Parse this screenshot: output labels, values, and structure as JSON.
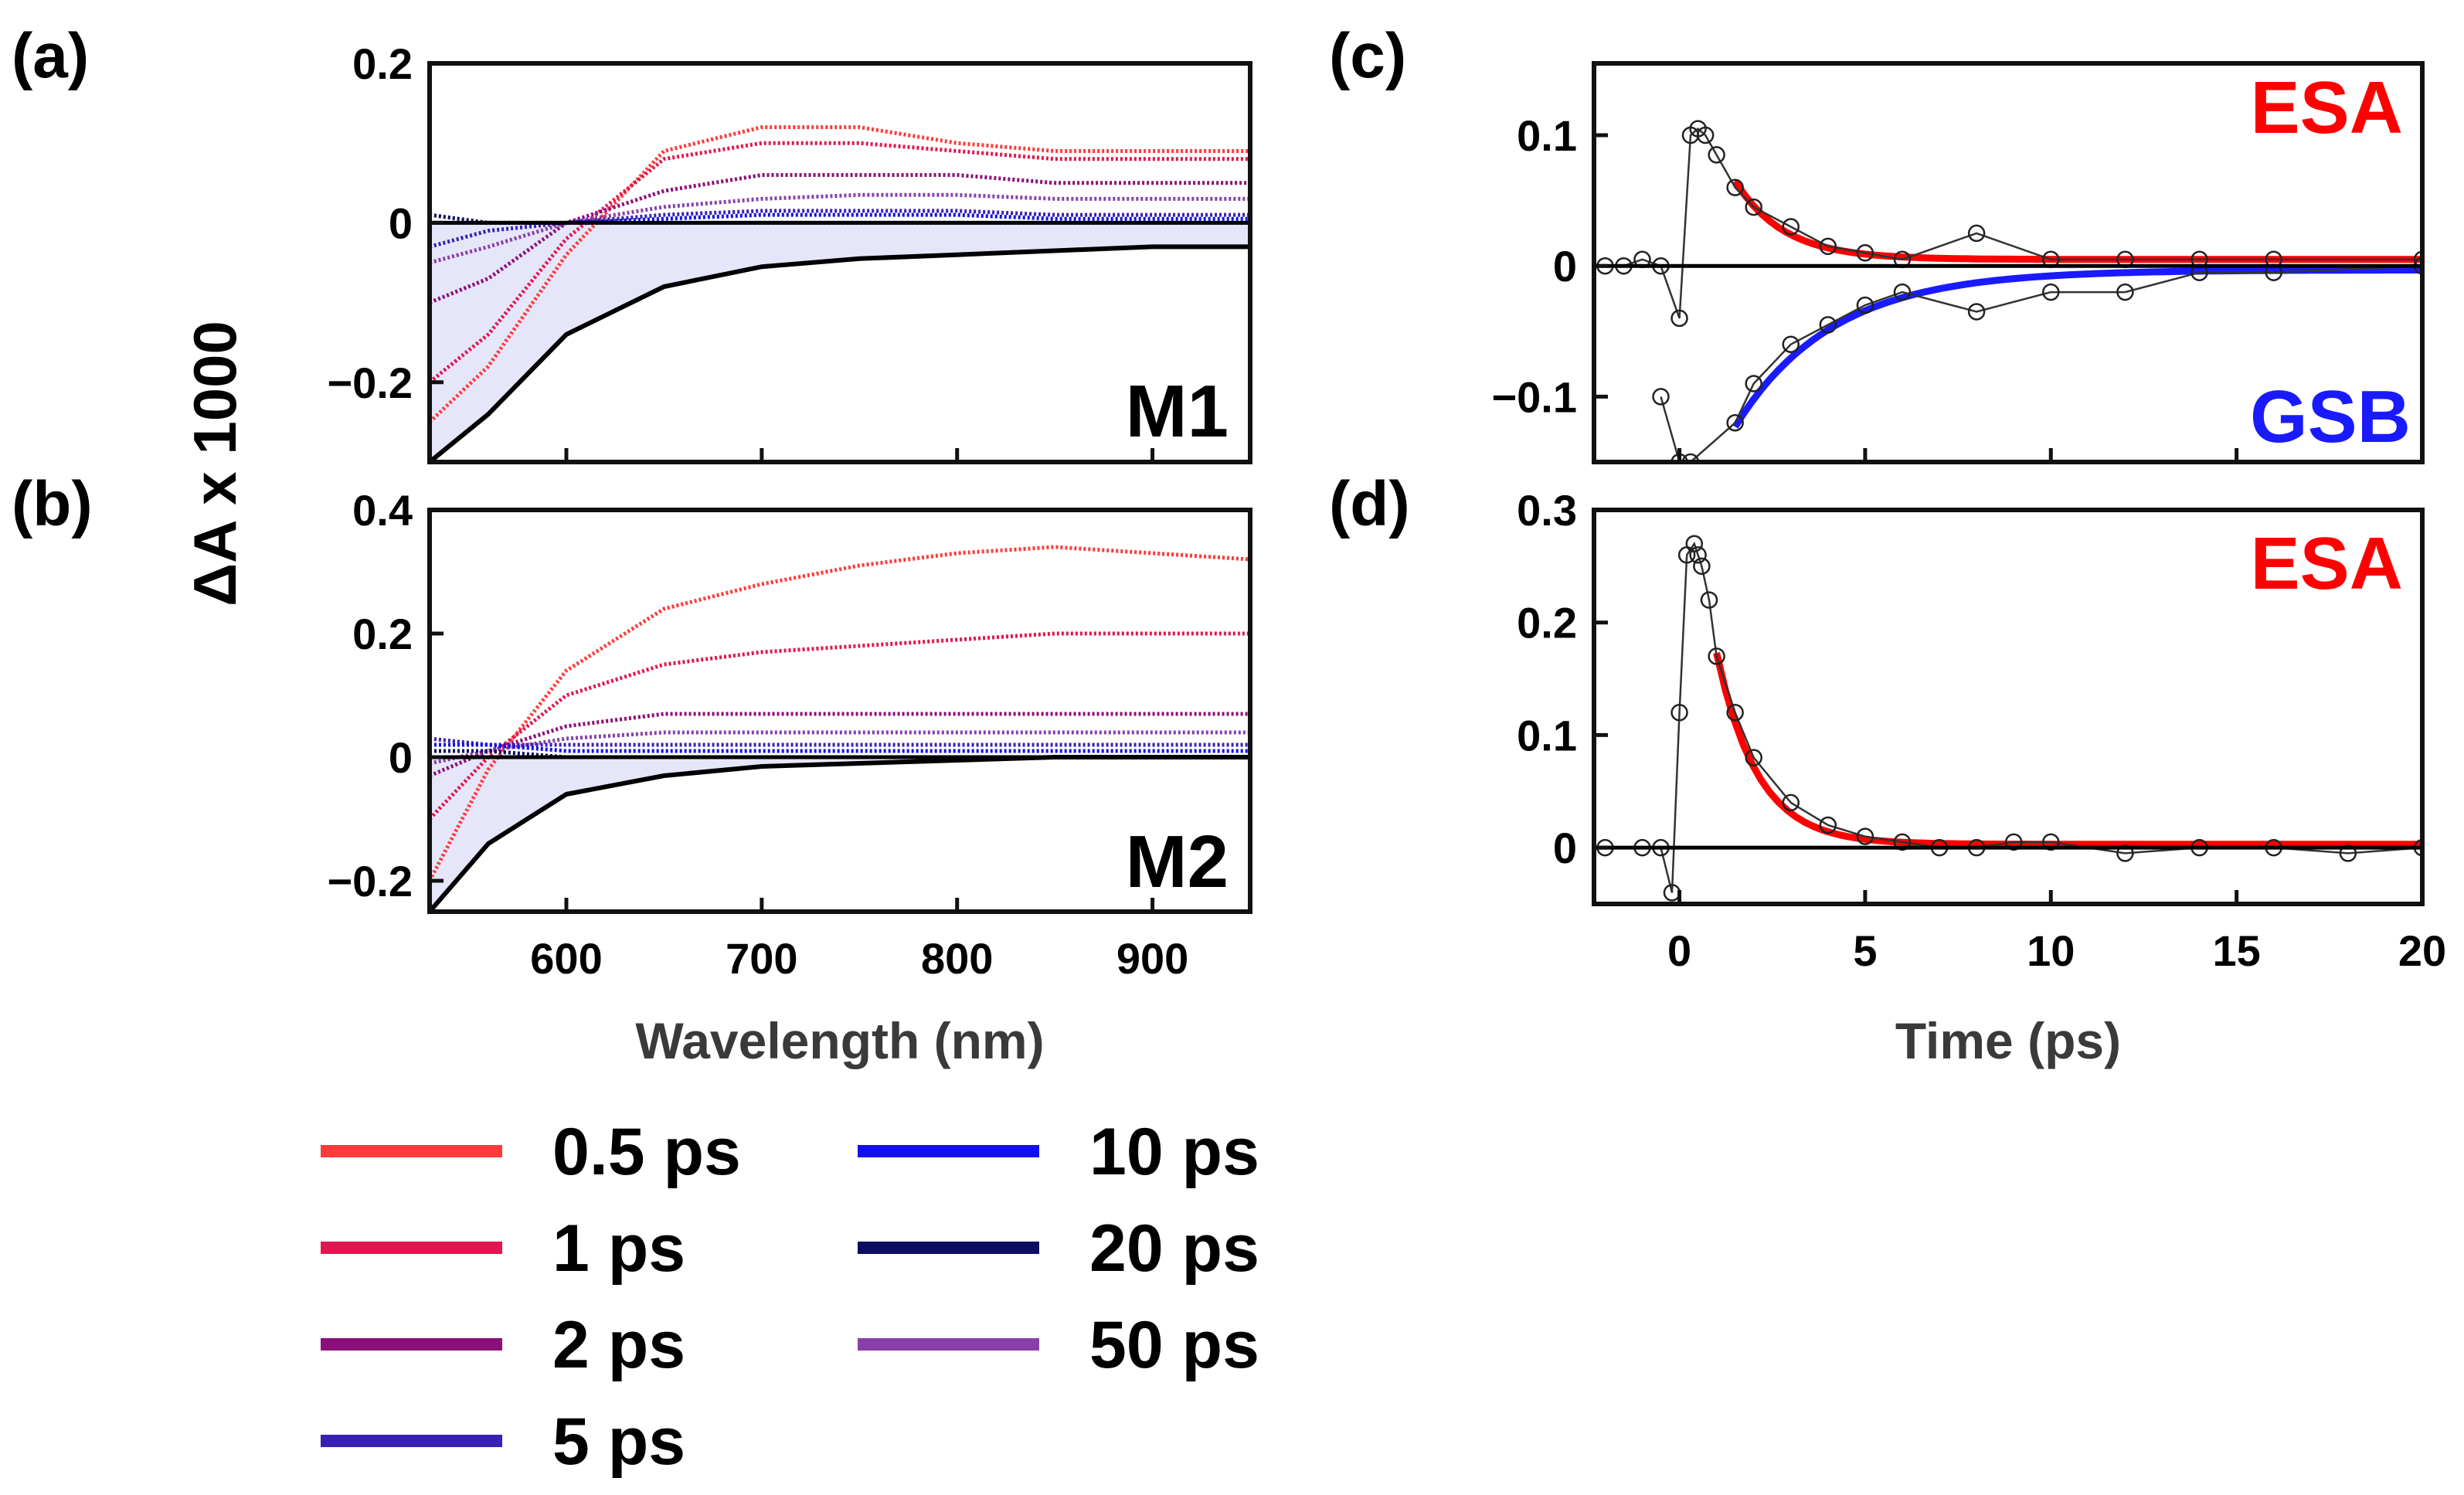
{
  "figure": {
    "ylabel_shared": "ΔA x 1000",
    "panel_labels": [
      "(a)",
      "(b)",
      "(c)",
      "(d)"
    ]
  },
  "colors": {
    "0.5 ps": "#ff3a3a",
    "1 ps": "#e0174e",
    "2 ps": "#8b0f7a",
    "5 ps": "#3a1fb5",
    "10 ps": "#1010ee",
    "20 ps": "#0c0c60",
    "50 ps": "#8a3fa8",
    "black": "#000000",
    "fill": "#e6e6fa",
    "fit_red": "#ff0000",
    "fit_blue": "#1a1aff"
  },
  "legend": {
    "items": [
      "0.5 ps",
      "1 ps",
      "2 ps",
      "5 ps",
      "10 ps",
      "20 ps",
      "50 ps"
    ]
  },
  "chart_data": [
    {
      "id": "a",
      "type": "line",
      "label": "M1",
      "xlabel": "",
      "ylabel": "ΔA x 1000",
      "xlim": [
        530,
        950
      ],
      "ylim": [
        -0.3,
        0.2
      ],
      "xticks": [
        600,
        700,
        800,
        900
      ],
      "yticks": [
        0.2,
        0,
        -0.2
      ],
      "yticklabels": [
        "0.2",
        "0",
        "−0.2"
      ],
      "x": [
        530,
        560,
        600,
        650,
        700,
        750,
        800,
        850,
        900,
        950
      ],
      "series": [
        {
          "name": "0.5 ps",
          "values": [
            -0.25,
            -0.18,
            -0.04,
            0.09,
            0.12,
            0.12,
            0.1,
            0.09,
            0.09,
            0.09
          ]
        },
        {
          "name": "1 ps",
          "values": [
            -0.2,
            -0.14,
            -0.02,
            0.08,
            0.1,
            0.1,
            0.09,
            0.08,
            0.08,
            0.08
          ]
        },
        {
          "name": "2 ps",
          "values": [
            -0.1,
            -0.07,
            0.0,
            0.04,
            0.06,
            0.06,
            0.06,
            0.05,
            0.05,
            0.05
          ]
        },
        {
          "name": "50 ps",
          "values": [
            -0.05,
            -0.03,
            0.0,
            0.02,
            0.03,
            0.035,
            0.035,
            0.03,
            0.03,
            0.03
          ]
        },
        {
          "name": "5 ps",
          "values": [
            -0.03,
            -0.01,
            0.0,
            0.01,
            0.015,
            0.015,
            0.015,
            0.01,
            0.01,
            0.01
          ]
        },
        {
          "name": "10 ps",
          "values": [
            0.0,
            0.0,
            0.0,
            0.005,
            0.01,
            0.01,
            0.01,
            0.005,
            0.005,
            0.005
          ]
        },
        {
          "name": "20 ps",
          "values": [
            0.01,
            0.0,
            0.0,
            0.0,
            0.0,
            0.0,
            0.0,
            0.0,
            0.0,
            0.0
          ]
        },
        {
          "name": "black",
          "values": [
            -0.3,
            -0.24,
            -0.14,
            -0.08,
            -0.055,
            -0.045,
            -0.04,
            -0.035,
            -0.03,
            -0.03
          ]
        }
      ]
    },
    {
      "id": "b",
      "type": "line",
      "label": "M2",
      "xlabel": "Wavelength (nm)",
      "ylabel": "ΔA x 1000",
      "xlim": [
        530,
        950
      ],
      "ylim": [
        -0.25,
        0.4
      ],
      "xticks": [
        600,
        700,
        800,
        900
      ],
      "yticks": [
        0.4,
        0.2,
        0,
        -0.2
      ],
      "yticklabels": [
        "0.4",
        "0.2",
        "0",
        "−0.2"
      ],
      "x": [
        530,
        560,
        600,
        650,
        700,
        750,
        800,
        850,
        900,
        950
      ],
      "series": [
        {
          "name": "0.5 ps",
          "values": [
            -0.2,
            -0.02,
            0.14,
            0.24,
            0.28,
            0.31,
            0.33,
            0.34,
            0.33,
            0.32
          ]
        },
        {
          "name": "1 ps",
          "values": [
            -0.1,
            0.0,
            0.1,
            0.15,
            0.17,
            0.18,
            0.19,
            0.2,
            0.2,
            0.2
          ]
        },
        {
          "name": "2 ps",
          "values": [
            -0.03,
            0.01,
            0.05,
            0.07,
            0.07,
            0.07,
            0.07,
            0.07,
            0.07,
            0.07
          ]
        },
        {
          "name": "50 ps",
          "values": [
            -0.01,
            0.01,
            0.03,
            0.04,
            0.04,
            0.04,
            0.04,
            0.04,
            0.04,
            0.04
          ]
        },
        {
          "name": "5 ps",
          "values": [
            0.03,
            0.02,
            0.02,
            0.02,
            0.02,
            0.02,
            0.02,
            0.02,
            0.02,
            0.02
          ]
        },
        {
          "name": "10 ps",
          "values": [
            0.02,
            0.02,
            0.01,
            0.01,
            0.01,
            0.01,
            0.01,
            0.01,
            0.01,
            0.01
          ]
        },
        {
          "name": "20 ps",
          "values": [
            0.01,
            0.01,
            0.0,
            0.0,
            0.0,
            0.0,
            0.0,
            0.0,
            0.0,
            0.0
          ]
        },
        {
          "name": "black",
          "values": [
            -0.25,
            -0.14,
            -0.06,
            -0.03,
            -0.015,
            -0.01,
            -0.005,
            0.0,
            0.0,
            0.0
          ]
        }
      ]
    },
    {
      "id": "c",
      "type": "scatter",
      "xlabel": "",
      "ylabel": "",
      "xlim": [
        -2.3,
        20
      ],
      "ylim": [
        -0.15,
        0.155
      ],
      "xticks": [
        0,
        5,
        10,
        15,
        20
      ],
      "yticks": [
        0.1,
        0,
        -0.1
      ],
      "yticklabels": [
        "0.1",
        "0",
        "−0.1"
      ],
      "annotations": [
        "ESA",
        "GSB"
      ],
      "esa_points": {
        "x": [
          -2,
          -1.5,
          -1,
          -0.5,
          0,
          0.3,
          0.5,
          0.7,
          1,
          1.5,
          2,
          3,
          4,
          5,
          6,
          8,
          10,
          12,
          14,
          16,
          20
        ],
        "y": [
          0,
          0,
          0.005,
          0,
          -0.04,
          0.1,
          0.105,
          0.1,
          0.085,
          0.06,
          0.045,
          0.03,
          0.015,
          0.01,
          0.005,
          0.025,
          0.005,
          0.005,
          0.005,
          0.005,
          0.005
        ]
      },
      "gsb_points": {
        "x": [
          -0.5,
          0,
          0.3,
          1.5,
          2,
          3,
          4,
          5,
          6,
          8,
          10,
          12,
          14,
          16,
          20
        ],
        "y": [
          -0.1,
          -0.15,
          -0.15,
          -0.12,
          -0.09,
          -0.06,
          -0.045,
          -0.03,
          -0.02,
          -0.035,
          -0.02,
          -0.02,
          -0.005,
          -0.005,
          0.0
        ]
      },
      "fits": [
        {
          "name": "ESA fit",
          "x0": 1.5,
          "A": 0.06,
          "tau": 1.3,
          "offset": 0.005
        },
        {
          "name": "GSB fit",
          "x0": 1.5,
          "A": -0.12,
          "tau": 2.6,
          "offset": -0.003
        }
      ]
    },
    {
      "id": "d",
      "type": "scatter",
      "xlabel": "Time (ps)",
      "ylabel": "",
      "xlim": [
        -2.3,
        20
      ],
      "ylim": [
        -0.05,
        0.3
      ],
      "xticks": [
        0,
        5,
        10,
        15,
        20
      ],
      "xticklabels": [
        "0",
        "5",
        "10",
        "15",
        "20"
      ],
      "yticks": [
        0.3,
        0.2,
        0.1,
        0
      ],
      "yticklabels": [
        "0.3",
        "0.2",
        "0.1",
        "0"
      ],
      "annotations": [
        "ESA"
      ],
      "points": {
        "x": [
          -2,
          -1,
          -0.5,
          -0.2,
          0,
          0.2,
          0.4,
          0.5,
          0.6,
          0.8,
          1,
          1.5,
          2,
          3,
          4,
          5,
          6,
          7,
          8,
          9,
          10,
          12,
          14,
          16,
          18,
          20
        ],
        "y": [
          0,
          0,
          0,
          -0.04,
          0.12,
          0.26,
          0.27,
          0.26,
          0.25,
          0.22,
          0.17,
          0.12,
          0.08,
          0.04,
          0.02,
          0.01,
          0.005,
          0.0,
          0.0,
          0.005,
          0.005,
          -0.005,
          0.0,
          0.0,
          -0.005,
          0.0
        ]
      },
      "fits": [
        {
          "name": "ESA fit",
          "x0": 1.0,
          "A": 0.17,
          "tau": 1.1,
          "offset": 0.003
        }
      ]
    }
  ]
}
